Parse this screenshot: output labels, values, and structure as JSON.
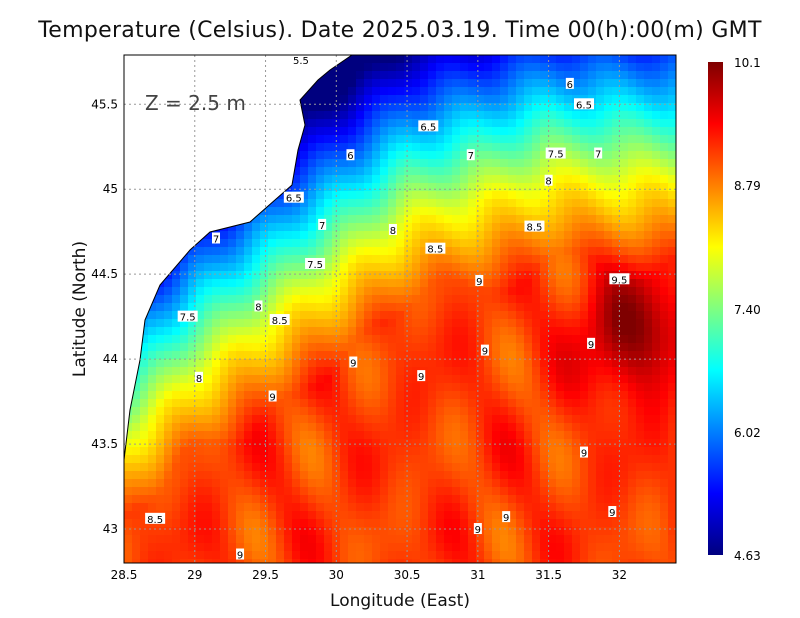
{
  "chart_data": {
    "type": "heatmap",
    "title": "Temperature (Celsius). Date 2025.03.19. Time 00(h):00(m) GMT",
    "annotation": "Z = 2.5 m",
    "xlabel": "Longitude (East)",
    "ylabel": "Latitude (North)",
    "xlim": [
      28.5,
      32.4
    ],
    "ylim": [
      42.8,
      45.79
    ],
    "xticks": [
      "28.5",
      "29",
      "29.5",
      "30",
      "30.5",
      "31",
      "31.5",
      "32"
    ],
    "yticks": [
      "43",
      "43.5",
      "44",
      "44.5",
      "45",
      "45.5"
    ],
    "grid": true,
    "colorbar": {
      "min": 4.63,
      "max": 10.1,
      "tick_labels": [
        "10.1",
        "8.79",
        "7.40",
        "6.02",
        "4.63"
      ],
      "colormap": [
        "#00007f",
        "#0000ff",
        "#00ffff",
        "#ffff00",
        "#ff0000",
        "#7f0000"
      ]
    },
    "contour_labels": [
      {
        "text": "5.5",
        "lon": 29.75,
        "lat": 45.76
      },
      {
        "text": "6",
        "lon": 31.65,
        "lat": 45.62
      },
      {
        "text": "6.5",
        "lon": 31.75,
        "lat": 45.5
      },
      {
        "text": "6.5",
        "lon": 30.65,
        "lat": 45.37
      },
      {
        "text": "6",
        "lon": 30.1,
        "lat": 45.2
      },
      {
        "text": "7",
        "lon": 30.95,
        "lat": 45.2
      },
      {
        "text": "7.5",
        "lon": 31.55,
        "lat": 45.21
      },
      {
        "text": "7",
        "lon": 31.85,
        "lat": 45.21
      },
      {
        "text": "8",
        "lon": 31.5,
        "lat": 45.05
      },
      {
        "text": "6.5",
        "lon": 29.7,
        "lat": 44.95
      },
      {
        "text": "7",
        "lon": 29.9,
        "lat": 44.79
      },
      {
        "text": "8",
        "lon": 30.4,
        "lat": 44.76
      },
      {
        "text": "8.5",
        "lon": 31.4,
        "lat": 44.78
      },
      {
        "text": "7",
        "lon": 29.15,
        "lat": 44.71
      },
      {
        "text": "8.5",
        "lon": 30.7,
        "lat": 44.65
      },
      {
        "text": "7.5",
        "lon": 29.85,
        "lat": 44.56
      },
      {
        "text": "9",
        "lon": 31.01,
        "lat": 44.46
      },
      {
        "text": "9.5",
        "lon": 32.0,
        "lat": 44.47
      },
      {
        "text": "8",
        "lon": 29.45,
        "lat": 44.31
      },
      {
        "text": "7.5",
        "lon": 28.95,
        "lat": 44.25
      },
      {
        "text": "8.5",
        "lon": 29.6,
        "lat": 44.23
      },
      {
        "text": "9",
        "lon": 31.8,
        "lat": 44.09
      },
      {
        "text": "9",
        "lon": 31.05,
        "lat": 44.05
      },
      {
        "text": "9",
        "lon": 30.12,
        "lat": 43.98
      },
      {
        "text": "8",
        "lon": 29.03,
        "lat": 43.89
      },
      {
        "text": "9",
        "lon": 30.6,
        "lat": 43.9
      },
      {
        "text": "9",
        "lon": 29.55,
        "lat": 43.78
      },
      {
        "text": "9",
        "lon": 31.75,
        "lat": 43.45
      },
      {
        "text": "9",
        "lon": 31.95,
        "lat": 43.1
      },
      {
        "text": "9",
        "lon": 31.2,
        "lat": 43.07
      },
      {
        "text": "8.5",
        "lon": 28.72,
        "lat": 43.06
      },
      {
        "text": "9",
        "lon": 31.0,
        "lat": 43.0
      },
      {
        "text": "9",
        "lon": 29.32,
        "lat": 42.85
      }
    ]
  }
}
